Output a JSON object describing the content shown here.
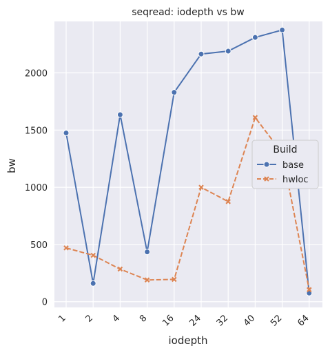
{
  "chart_data": {
    "type": "line",
    "title": "seqread: iodepth vs bw",
    "xlabel": "iodepth",
    "ylabel": "bw",
    "categories": [
      "1",
      "2",
      "4",
      "8",
      "16",
      "24",
      "32",
      "40",
      "52",
      "64"
    ],
    "yticks": [
      "0",
      "500",
      "1000",
      "1500",
      "2000"
    ],
    "ylim": [
      -50,
      2450
    ],
    "grid": true,
    "legend": {
      "title": "Build",
      "placement": "right"
    },
    "series": [
      {
        "name": "base",
        "color": "#4c72b0",
        "marker": "circle",
        "dash": "solid",
        "values": [
          1475,
          160,
          1635,
          435,
          1830,
          2165,
          2190,
          2310,
          2375,
          75
        ]
      },
      {
        "name": "hwloc",
        "color": "#dd8452",
        "marker": "x",
        "dash": "dashed",
        "values": [
          470,
          405,
          285,
          190,
          195,
          1000,
          875,
          1610,
          1300,
          105
        ]
      }
    ]
  }
}
